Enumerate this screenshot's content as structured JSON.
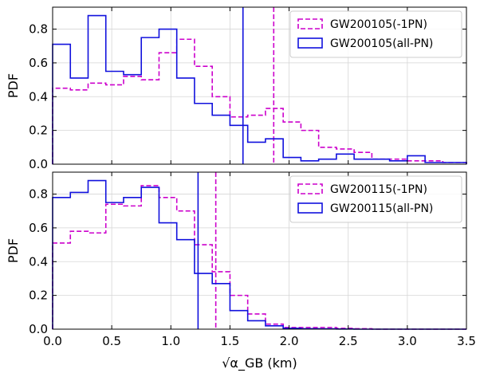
{
  "chart_data": {
    "type": "histogram",
    "xlabel": "√α_GB (km)",
    "xlim": [
      0,
      3.5
    ],
    "xticks": [
      0.0,
      0.5,
      1.0,
      1.5,
      2.0,
      2.5,
      3.0,
      3.5
    ],
    "xtick_labels": [
      "0.0",
      "0.5",
      "1.0",
      "1.5",
      "2.0",
      "2.5",
      "3.0",
      "3.5"
    ],
    "grid": true,
    "panels": [
      {
        "ylabel": "PDF",
        "ylim": [
          0,
          0.93
        ],
        "yticks": [
          0.0,
          0.2,
          0.4,
          0.6,
          0.8
        ],
        "ytick_labels": [
          "0.0",
          "0.2",
          "0.4",
          "0.6",
          "0.8"
        ],
        "legend_position": "top-right",
        "series": [
          {
            "name": "GW200105(-1PN)",
            "color": "#cc00cc",
            "style": "dashed",
            "bin_edges": [
              0.0,
              0.15,
              0.3,
              0.45,
              0.6,
              0.75,
              0.9,
              1.05,
              1.2,
              1.35,
              1.5,
              1.65,
              1.8,
              1.95,
              2.1,
              2.25,
              2.4,
              2.55,
              2.7,
              2.85,
              3.0,
              3.15,
              3.3,
              3.5
            ],
            "values": [
              0.45,
              0.44,
              0.48,
              0.47,
              0.52,
              0.5,
              0.66,
              0.74,
              0.58,
              0.4,
              0.28,
              0.29,
              0.33,
              0.25,
              0.2,
              0.1,
              0.09,
              0.07,
              0.03,
              0.03,
              0.02,
              0.02,
              0.01
            ],
            "median_line": 1.87
          },
          {
            "name": "GW200105(all-PN)",
            "color": "#1111dd",
            "style": "solid",
            "bin_edges": [
              0.0,
              0.15,
              0.3,
              0.45,
              0.6,
              0.75,
              0.9,
              1.05,
              1.2,
              1.35,
              1.5,
              1.65,
              1.8,
              1.95,
              2.1,
              2.25,
              2.4,
              2.55,
              2.7,
              2.85,
              3.0,
              3.15,
              3.3,
              3.5
            ],
            "values": [
              0.71,
              0.51,
              0.88,
              0.55,
              0.53,
              0.75,
              0.8,
              0.51,
              0.36,
              0.29,
              0.23,
              0.13,
              0.15,
              0.04,
              0.02,
              0.03,
              0.06,
              0.03,
              0.03,
              0.02,
              0.05,
              0.01,
              0.01
            ],
            "median_line": 1.61
          }
        ]
      },
      {
        "ylabel": "PDF",
        "ylim": [
          0,
          0.93
        ],
        "yticks": [
          0.0,
          0.2,
          0.4,
          0.6,
          0.8
        ],
        "ytick_labels": [
          "0.0",
          "0.2",
          "0.4",
          "0.6",
          "0.8"
        ],
        "legend_position": "top-right",
        "series": [
          {
            "name": "GW200115(-1PN)",
            "color": "#cc00cc",
            "style": "dashed",
            "bin_edges": [
              0.0,
              0.15,
              0.3,
              0.45,
              0.6,
              0.75,
              0.9,
              1.05,
              1.2,
              1.35,
              1.5,
              1.65,
              1.8,
              1.95,
              2.1,
              2.25,
              2.4,
              2.55,
              2.7,
              3.5
            ],
            "values": [
              0.51,
              0.58,
              0.57,
              0.74,
              0.73,
              0.85,
              0.78,
              0.7,
              0.5,
              0.34,
              0.2,
              0.09,
              0.03,
              0.01,
              0.01,
              0.01,
              0.005,
              0.003,
              0.0
            ],
            "median_line": 1.38
          },
          {
            "name": "GW200115(all-PN)",
            "color": "#1111dd",
            "style": "solid",
            "bin_edges": [
              0.0,
              0.15,
              0.3,
              0.45,
              0.6,
              0.75,
              0.9,
              1.05,
              1.2,
              1.35,
              1.5,
              1.65,
              1.8,
              1.95,
              2.1,
              2.25,
              2.4,
              2.55,
              2.7,
              3.5
            ],
            "values": [
              0.78,
              0.81,
              0.88,
              0.75,
              0.78,
              0.84,
              0.63,
              0.53,
              0.33,
              0.27,
              0.11,
              0.05,
              0.02,
              0.005,
              0.003,
              0.002,
              0.001,
              0.0,
              0.0
            ],
            "median_line": 1.23
          }
        ]
      }
    ]
  }
}
